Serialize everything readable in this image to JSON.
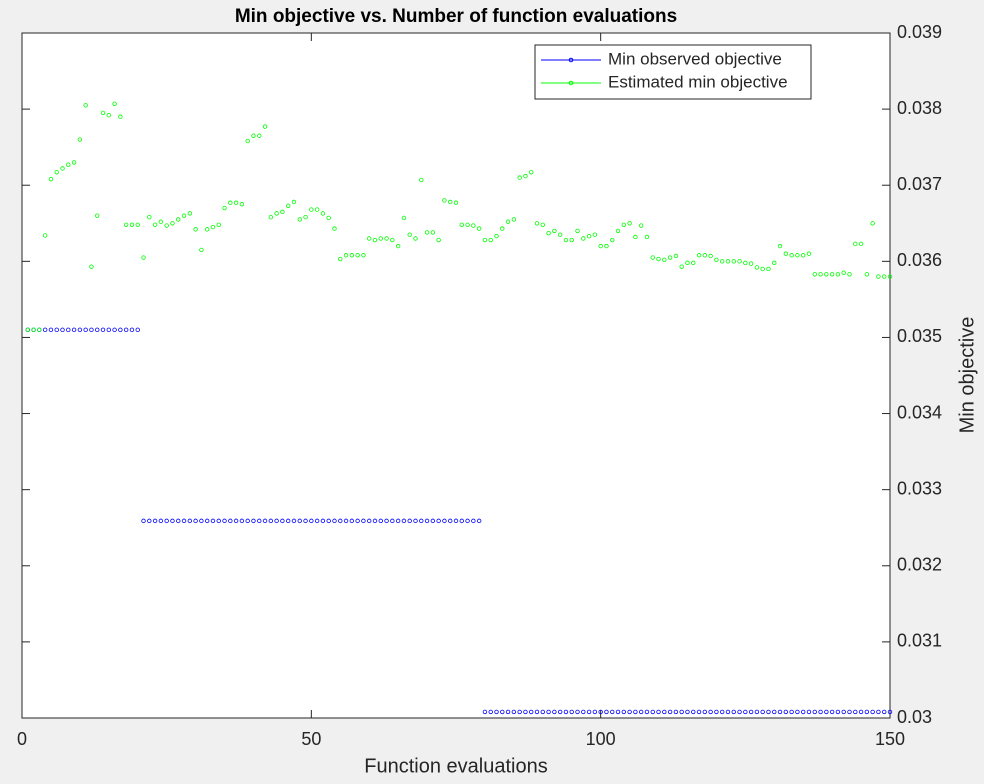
{
  "chart_data": {
    "type": "line",
    "title": "Min objective vs. Number of function evaluations",
    "xlabel": "Function evaluations",
    "ylabel": "Min objective",
    "x": [
      1,
      2,
      3,
      4,
      5,
      6,
      7,
      8,
      9,
      10,
      11,
      12,
      13,
      14,
      15,
      16,
      17,
      18,
      19,
      20,
      21,
      22,
      23,
      24,
      25,
      26,
      27,
      28,
      29,
      30,
      31,
      32,
      33,
      34,
      35,
      36,
      37,
      38,
      39,
      40,
      41,
      42,
      43,
      44,
      45,
      46,
      47,
      48,
      49,
      50,
      51,
      52,
      53,
      54,
      55,
      56,
      57,
      58,
      59,
      60,
      61,
      62,
      63,
      64,
      65,
      66,
      67,
      68,
      69,
      70,
      71,
      72,
      73,
      74,
      75,
      76,
      77,
      78,
      79,
      80,
      81,
      82,
      83,
      84,
      85,
      86,
      87,
      88,
      89,
      90,
      91,
      92,
      93,
      94,
      95,
      96,
      97,
      98,
      99,
      100,
      101,
      102,
      103,
      104,
      105,
      106,
      107,
      108,
      109,
      110,
      111,
      112,
      113,
      114,
      115,
      116,
      117,
      118,
      119,
      120,
      121,
      122,
      123,
      124,
      125,
      126,
      127,
      128,
      129,
      130,
      131,
      132,
      133,
      134,
      135,
      136,
      137,
      138,
      139,
      140,
      141,
      142,
      143,
      144,
      145,
      146,
      147,
      148,
      149,
      150
    ],
    "series": [
      {
        "name": "Min observed objective",
        "color": "#0000ff",
        "values": [
          0.0351,
          0.0351,
          0.0351,
          0.0351,
          0.0351,
          0.0351,
          0.0351,
          0.0351,
          0.0351,
          0.0351,
          0.0351,
          0.0351,
          0.0351,
          0.0351,
          0.0351,
          0.0351,
          0.0351,
          0.0351,
          0.0351,
          0.0351,
          0.03259,
          0.03259,
          0.03259,
          0.03259,
          0.03259,
          0.03259,
          0.03259,
          0.03259,
          0.03259,
          0.03259,
          0.03259,
          0.03259,
          0.03259,
          0.03259,
          0.03259,
          0.03259,
          0.03259,
          0.03259,
          0.03259,
          0.03259,
          0.03259,
          0.03259,
          0.03259,
          0.03259,
          0.03259,
          0.03259,
          0.03259,
          0.03259,
          0.03259,
          0.03259,
          0.03259,
          0.03259,
          0.03259,
          0.03259,
          0.03259,
          0.03259,
          0.03259,
          0.03259,
          0.03259,
          0.03259,
          0.03259,
          0.03259,
          0.03259,
          0.03259,
          0.03259,
          0.03259,
          0.03259,
          0.03259,
          0.03259,
          0.03259,
          0.03259,
          0.03259,
          0.03259,
          0.03259,
          0.03259,
          0.03259,
          0.03259,
          0.03259,
          0.03259,
          0.03008,
          0.03008,
          0.03008,
          0.03008,
          0.03008,
          0.03008,
          0.03008,
          0.03008,
          0.03008,
          0.03008,
          0.03008,
          0.03008,
          0.03008,
          0.03008,
          0.03008,
          0.03008,
          0.03008,
          0.03008,
          0.03008,
          0.03008,
          0.03008,
          0.03008,
          0.03008,
          0.03008,
          0.03008,
          0.03008,
          0.03008,
          0.03008,
          0.03008,
          0.03008,
          0.03008,
          0.03008,
          0.03008,
          0.03008,
          0.03008,
          0.03008,
          0.03008,
          0.03008,
          0.03008,
          0.03008,
          0.03008,
          0.03008,
          0.03008,
          0.03008,
          0.03008,
          0.03008,
          0.03008,
          0.03008,
          0.03008,
          0.03008,
          0.03008,
          0.03008,
          0.03008,
          0.03008,
          0.03008,
          0.03008,
          0.03008,
          0.03008,
          0.03008,
          0.03008,
          0.03008,
          0.03008,
          0.03008,
          0.03008,
          0.03008,
          0.03008,
          0.03008,
          0.03008,
          0.03008,
          0.03008,
          0.03008
        ]
      },
      {
        "name": "Estimated min objective",
        "color": "#00ff00",
        "values": [
          0.0351,
          0.0351,
          0.0351,
          0.03634,
          0.03708,
          0.03717,
          0.03722,
          0.03727,
          0.0373,
          0.0376,
          0.03805,
          0.03593,
          0.0366,
          0.03795,
          0.03792,
          0.03807,
          0.0379,
          0.03648,
          0.03648,
          0.03648,
          0.03605,
          0.03658,
          0.03648,
          0.03652,
          0.03647,
          0.0365,
          0.03655,
          0.0366,
          0.03663,
          0.03642,
          0.03615,
          0.03642,
          0.03645,
          0.03648,
          0.0367,
          0.03677,
          0.03677,
          0.03675,
          0.03758,
          0.03765,
          0.03765,
          0.03777,
          0.03658,
          0.03663,
          0.03665,
          0.03673,
          0.03678,
          0.03655,
          0.03658,
          0.03668,
          0.03668,
          0.03663,
          0.03657,
          0.03643,
          0.03603,
          0.03608,
          0.03608,
          0.03608,
          0.03608,
          0.0363,
          0.03628,
          0.0363,
          0.0363,
          0.03628,
          0.0362,
          0.03657,
          0.03635,
          0.0363,
          0.03707,
          0.03638,
          0.03638,
          0.03628,
          0.0368,
          0.03678,
          0.03677,
          0.03648,
          0.03648,
          0.03647,
          0.03643,
          0.03628,
          0.03628,
          0.03633,
          0.03643,
          0.03652,
          0.03655,
          0.0371,
          0.03712,
          0.03717,
          0.0365,
          0.03648,
          0.03637,
          0.0364,
          0.03635,
          0.03628,
          0.03628,
          0.0364,
          0.0363,
          0.03633,
          0.03635,
          0.0362,
          0.0362,
          0.03628,
          0.0364,
          0.03648,
          0.0365,
          0.03632,
          0.03647,
          0.03632,
          0.03605,
          0.03603,
          0.03602,
          0.03605,
          0.03607,
          0.03593,
          0.03598,
          0.03598,
          0.03608,
          0.03608,
          0.03607,
          0.03602,
          0.036,
          0.036,
          0.036,
          0.036,
          0.03598,
          0.03597,
          0.03592,
          0.0359,
          0.0359,
          0.03598,
          0.0362,
          0.0361,
          0.03608,
          0.03608,
          0.03608,
          0.0361,
          0.03583,
          0.03583,
          0.03583,
          0.03583,
          0.03583,
          0.03585,
          0.03583,
          0.03623,
          0.03623,
          0.03583,
          0.0365,
          0.0358,
          0.0358,
          0.0358
        ]
      }
    ],
    "xlim": [
      0,
      150
    ],
    "xticks": [
      0,
      50,
      100,
      150
    ],
    "ylim": [
      0.03,
      0.039
    ],
    "yticks": [
      0.03,
      0.031,
      0.032,
      0.033,
      0.034,
      0.035,
      0.036,
      0.037,
      0.038,
      0.039
    ],
    "y_axis_position": "right",
    "grid": false,
    "legend_position": "northeast"
  }
}
